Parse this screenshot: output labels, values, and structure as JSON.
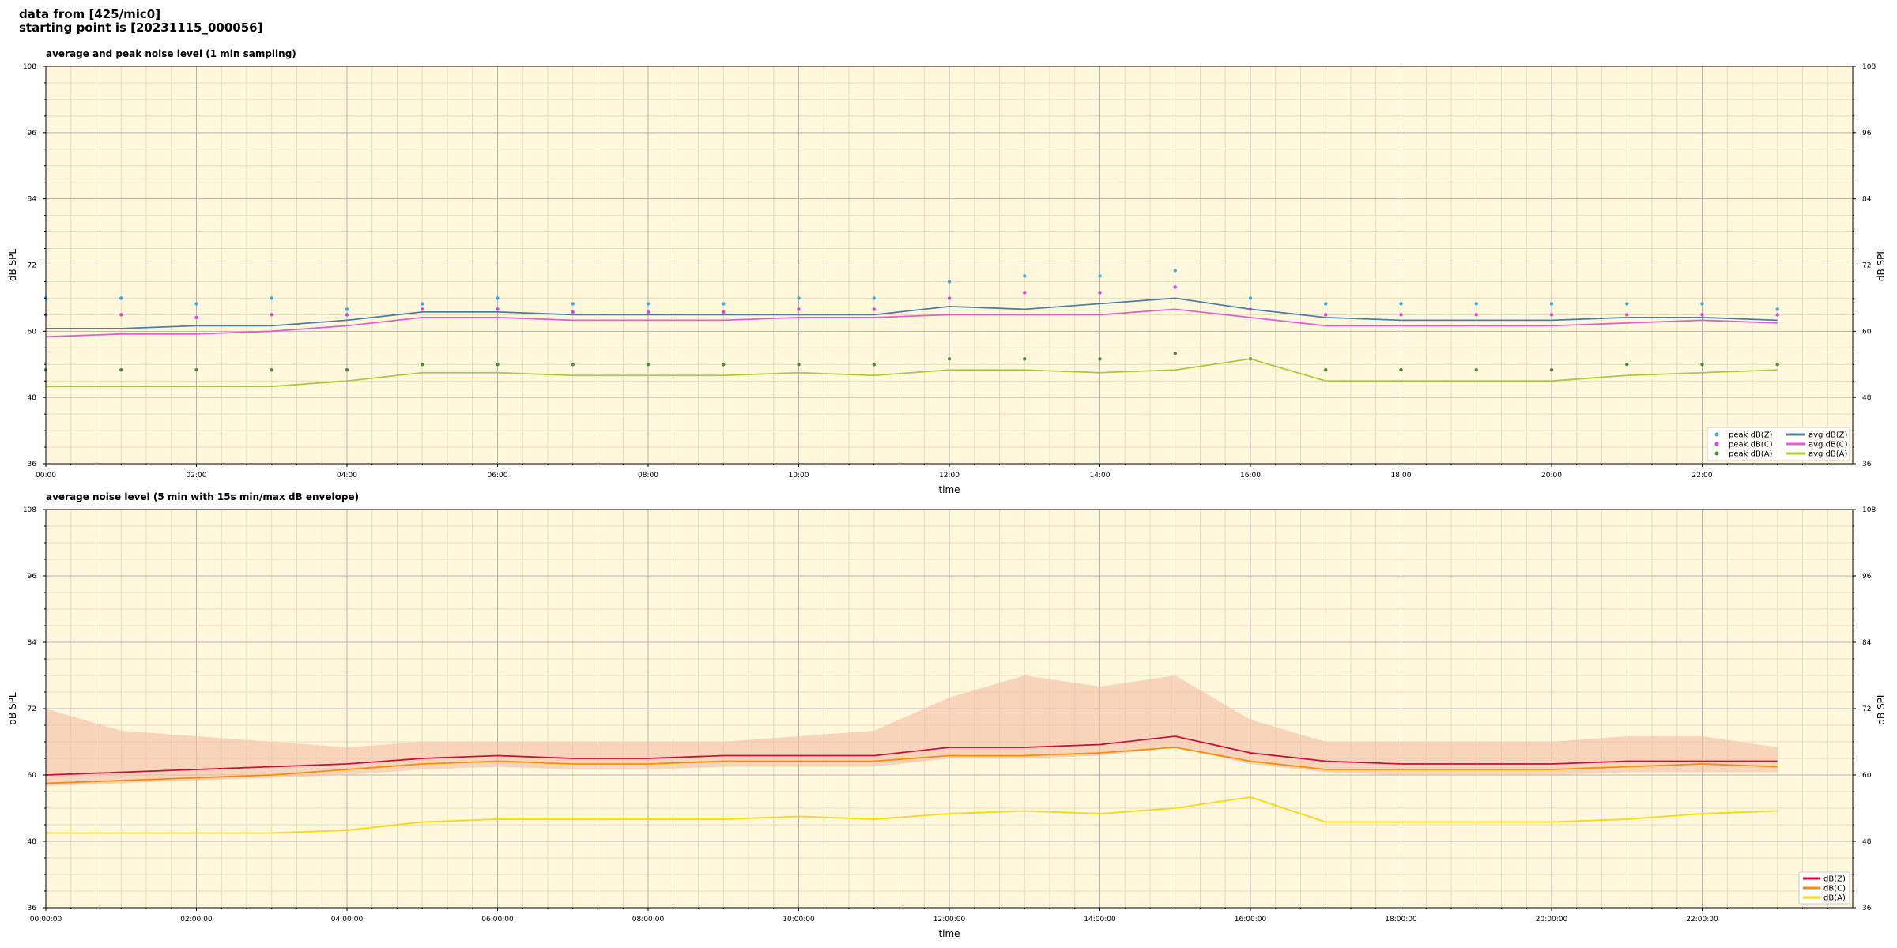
{
  "header": {
    "line1": "data from [425/mic0]",
    "line2": "starting point is [20231115_000056]"
  },
  "chart_data": [
    {
      "type": "line",
      "title": "average and peak noise level (1 min sampling)",
      "xlabel": "time",
      "ylabel": "dB SPL",
      "ylim": [
        36,
        108
      ],
      "yticks": [
        36,
        48,
        60,
        72,
        84,
        96,
        108
      ],
      "xlim_hours": [
        0,
        24
      ],
      "xticks": [
        "00:00",
        "02:00",
        "04:00",
        "06:00",
        "08:00",
        "10:00",
        "12:00",
        "14:00",
        "16:00",
        "18:00",
        "20:00",
        "22:00"
      ],
      "grid": true,
      "legend_position": "bottom-right",
      "background": "#fff8dc",
      "x_hours": [
        0,
        1,
        2,
        3,
        4,
        5,
        6,
        7,
        8,
        9,
        10,
        11,
        12,
        13,
        14,
        15,
        16,
        17,
        18,
        19,
        20,
        21,
        22,
        23
      ],
      "series": [
        {
          "name": "avg dB(Z)",
          "kind": "line",
          "color": "#4f7fa8",
          "values": [
            60.5,
            60.5,
            61,
            61,
            62,
            63.5,
            63.5,
            63,
            63,
            63,
            63,
            63,
            64.5,
            64,
            65,
            66,
            64,
            62.5,
            62,
            62,
            62,
            62.5,
            62.5,
            62
          ]
        },
        {
          "name": "avg dB(C)",
          "kind": "line",
          "color": "#e060d0",
          "values": [
            59,
            59.5,
            59.5,
            60,
            61,
            62.5,
            62.5,
            62,
            62,
            62,
            62.5,
            62.5,
            63,
            63,
            63,
            64,
            62.5,
            61,
            61,
            61,
            61,
            61.5,
            62,
            61.5
          ]
        },
        {
          "name": "avg dB(A)",
          "kind": "line",
          "color": "#a8cc3c",
          "values": [
            50,
            50,
            50,
            50,
            51,
            52.5,
            52.5,
            52,
            52,
            52,
            52.5,
            52,
            53,
            53,
            52.5,
            53,
            55,
            51,
            51,
            51,
            51,
            52,
            52.5,
            53
          ]
        },
        {
          "name": "peak dB(Z)",
          "kind": "scatter",
          "color": "#3aaae0",
          "values": [
            66,
            66,
            65,
            66,
            64,
            65,
            66,
            65,
            65,
            65,
            66,
            66,
            69,
            70,
            70,
            71,
            66,
            65,
            65,
            65,
            65,
            65,
            65,
            64
          ]
        },
        {
          "name": "peak dB(C)",
          "kind": "scatter",
          "color": "#e040e0",
          "values": [
            63,
            63,
            62.5,
            63,
            63,
            64,
            64,
            63.5,
            63.5,
            63.5,
            64,
            64,
            66,
            67,
            67,
            68,
            64,
            63,
            63,
            63,
            63,
            63,
            63,
            63
          ]
        },
        {
          "name": "peak dB(A)",
          "kind": "scatter",
          "color": "#4a8a38",
          "values": [
            53,
            53,
            53,
            53,
            53,
            54,
            54,
            54,
            54,
            54,
            54,
            54,
            55,
            55,
            55,
            56,
            55,
            53,
            53,
            53,
            53,
            54,
            54,
            54
          ]
        }
      ],
      "legend": [
        "peak dB(Z)",
        "peak dB(C)",
        "peak dB(A)",
        "avg dB(Z)",
        "avg dB(C)",
        "avg dB(A)"
      ]
    },
    {
      "type": "line",
      "title": "average noise level (5 min with 15s min/max dB envelope)",
      "xlabel": "time",
      "ylabel": "dB SPL",
      "ylim": [
        36,
        108
      ],
      "yticks": [
        36,
        48,
        60,
        72,
        84,
        96,
        108
      ],
      "xlim_hours": [
        0,
        24
      ],
      "xticks": [
        "00:00:00",
        "02:00:00",
        "04:00:00",
        "06:00:00",
        "08:00:00",
        "10:00:00",
        "12:00:00",
        "14:00:00",
        "16:00:00",
        "18:00:00",
        "20:00:00",
        "22:00:00"
      ],
      "grid": true,
      "legend_position": "bottom-right",
      "background": "#fff8dc",
      "envelope_color": "#f5c0a8",
      "x_hours": [
        0,
        1,
        2,
        3,
        4,
        5,
        6,
        7,
        8,
        9,
        10,
        11,
        12,
        13,
        14,
        15,
        16,
        17,
        18,
        19,
        20,
        21,
        22,
        23
      ],
      "envelope_max": [
        72,
        68,
        67,
        66,
        65,
        66,
        66,
        66,
        66,
        66,
        67,
        68,
        74,
        78,
        76,
        78,
        70,
        66,
        66,
        66,
        66,
        67,
        67,
        65
      ],
      "series": [
        {
          "name": "dB(Z)",
          "color": "#cc1040",
          "values": [
            60,
            60.5,
            61,
            61.5,
            62,
            63,
            63.5,
            63,
            63,
            63.5,
            63.5,
            63.5,
            65,
            65,
            65.5,
            67,
            64,
            62.5,
            62,
            62,
            62,
            62.5,
            62.5,
            62.5
          ]
        },
        {
          "name": "dB(C)",
          "color": "#ff8c00",
          "values": [
            58.5,
            59,
            59.5,
            60,
            61,
            62,
            62.5,
            62,
            62,
            62.5,
            62.5,
            62.5,
            63.5,
            63.5,
            64,
            65,
            62.5,
            61,
            61,
            61,
            61,
            61.5,
            62,
            61.5
          ]
        },
        {
          "name": "dB(A)",
          "color": "#ffd700",
          "values": [
            49.5,
            49.5,
            49.5,
            49.5,
            50,
            51.5,
            52,
            52,
            52,
            52,
            52.5,
            52,
            53,
            53.5,
            53,
            54,
            56,
            51.5,
            51.5,
            51.5,
            51.5,
            52,
            53,
            53.5
          ]
        }
      ],
      "legend": [
        "dB(Z)",
        "dB(C)",
        "dB(A)"
      ]
    }
  ]
}
